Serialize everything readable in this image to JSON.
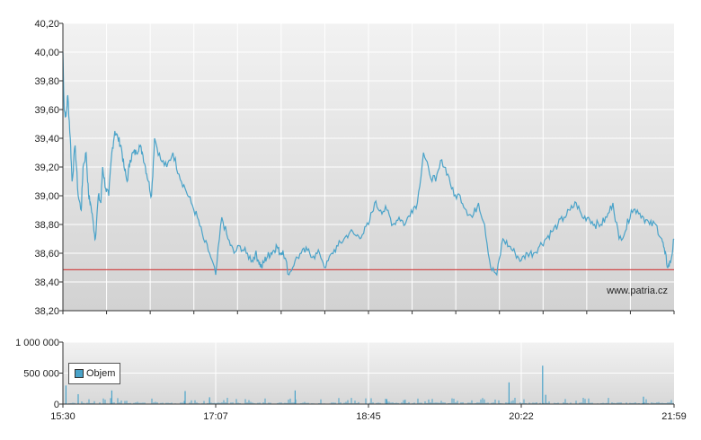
{
  "chart_data": [
    {
      "type": "line",
      "y_ticks": [
        "40,20",
        "40,00",
        "39,80",
        "39,60",
        "39,40",
        "39,20",
        "39,00",
        "38,80",
        "38,60",
        "38,40",
        "38,20"
      ],
      "ylim": [
        38.2,
        40.2
      ],
      "reference_line": 38.485,
      "watermark": "www.patria.cz",
      "colors": {
        "line": "#4aa3c9",
        "reference": "#d04a4a",
        "grid": "#ffffff"
      },
      "series": [
        {
          "x": [
            0,
            0.002,
            0.005,
            0.008,
            0.012,
            0.015,
            0.02,
            0.025,
            0.03,
            0.033,
            0.038,
            0.042,
            0.045,
            0.05,
            0.053,
            0.058,
            0.062,
            0.065,
            0.07,
            0.075,
            0.08,
            0.085,
            0.09,
            0.095,
            0.1,
            0.105,
            0.11,
            0.115,
            0.12,
            0.125,
            0.13,
            0.135,
            0.14,
            0.145,
            0.15,
            0.16,
            0.17,
            0.18,
            0.19,
            0.2,
            0.21,
            0.22,
            0.23,
            0.24,
            0.25,
            0.26,
            0.27,
            0.28,
            0.29,
            0.3,
            0.31,
            0.315,
            0.32,
            0.325,
            0.33,
            0.335,
            0.34,
            0.345,
            0.35,
            0.355,
            0.36,
            0.37,
            0.38,
            0.39,
            0.4,
            0.41,
            0.42,
            0.43,
            0.44,
            0.45,
            0.46,
            0.47,
            0.48,
            0.49,
            0.5,
            0.51,
            0.52,
            0.53,
            0.54,
            0.55,
            0.56,
            0.57,
            0.58,
            0.59,
            0.6,
            0.61,
            0.62,
            0.63,
            0.64,
            0.65,
            0.66,
            0.67,
            0.68,
            0.69,
            0.7,
            0.71,
            0.72,
            0.73,
            0.74,
            0.75,
            0.76,
            0.77,
            0.78,
            0.79,
            0.8,
            0.81,
            0.82,
            0.83,
            0.84,
            0.85,
            0.86,
            0.87,
            0.88,
            0.89,
            0.9,
            0.91,
            0.92,
            0.93,
            0.94,
            0.95,
            0.96,
            0.97,
            0.98,
            0.985,
            0.99,
            0.995,
            1.0
          ],
          "y": [
            40.0,
            39.6,
            39.55,
            39.7,
            39.4,
            39.1,
            39.35,
            39.0,
            38.9,
            39.2,
            39.3,
            39.0,
            38.95,
            38.8,
            38.7,
            39.0,
            38.95,
            39.2,
            39.05,
            39.0,
            39.3,
            39.45,
            39.4,
            39.35,
            39.2,
            39.1,
            39.25,
            39.3,
            39.3,
            39.35,
            39.3,
            39.2,
            39.1,
            39.0,
            39.4,
            39.25,
            39.2,
            39.3,
            39.15,
            39.05,
            38.95,
            38.85,
            38.7,
            38.6,
            38.45,
            38.85,
            38.7,
            38.6,
            38.65,
            38.6,
            38.55,
            38.6,
            38.55,
            38.5,
            38.55,
            38.58,
            38.6,
            38.62,
            38.65,
            38.6,
            38.62,
            38.45,
            38.55,
            38.6,
            38.62,
            38.58,
            38.6,
            38.5,
            38.6,
            38.65,
            38.7,
            38.75,
            38.72,
            38.73,
            38.8,
            38.95,
            38.9,
            38.9,
            38.8,
            38.85,
            38.8,
            38.9,
            38.95,
            39.3,
            39.15,
            39.1,
            39.25,
            39.15,
            39.0,
            39.0,
            38.9,
            38.85,
            38.95,
            38.8,
            38.5,
            38.45,
            38.7,
            38.65,
            38.6,
            38.55,
            38.6,
            38.6,
            38.65,
            38.7,
            38.75,
            38.8,
            38.85,
            38.9,
            38.95,
            38.85,
            38.85,
            38.8,
            38.8,
            38.85,
            38.95,
            38.7,
            38.75,
            38.9,
            38.9,
            38.85,
            38.8,
            38.8,
            38.7,
            38.6,
            38.5,
            38.55,
            38.7
          ],
          "__note": "x as fraction of session 15:30–21:59"
        }
      ]
    },
    {
      "type": "bar",
      "y_ticks": [
        "1 000 000",
        "500 000",
        "0"
      ],
      "ylim": [
        0,
        1000000
      ],
      "x_ticks": [
        "15:30",
        "17:07",
        "18:45",
        "20:22",
        "21:59"
      ],
      "legend": "Objem",
      "colors": {
        "bar": "#4aa3c9"
      },
      "spikes": [
        {
          "x": 0.005,
          "v": 300000
        },
        {
          "x": 0.025,
          "v": 160000
        },
        {
          "x": 0.08,
          "v": 220000
        },
        {
          "x": 0.2,
          "v": 210000
        },
        {
          "x": 0.24,
          "v": 110000
        },
        {
          "x": 0.38,
          "v": 220000
        },
        {
          "x": 0.53,
          "v": 80000
        },
        {
          "x": 0.56,
          "v": 70000
        },
        {
          "x": 0.73,
          "v": 350000
        },
        {
          "x": 0.785,
          "v": 620000
        },
        {
          "x": 0.79,
          "v": 150000
        },
        {
          "x": 0.95,
          "v": 120000
        }
      ]
    }
  ]
}
